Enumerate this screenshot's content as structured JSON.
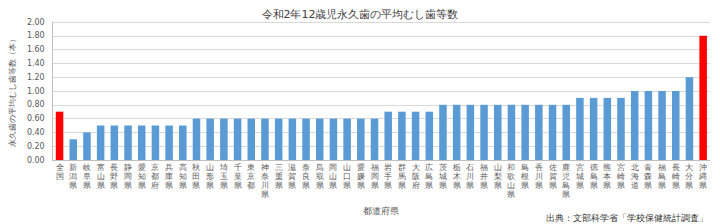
{
  "chart_data": {
    "type": "bar",
    "title": "令和2年12歳児永久歯の平均むし歯等数",
    "xlabel": "都道府県",
    "ylabel": "永久歯の平均むし歯等数（本）",
    "annotations": [
      "出典：文部科学省「学校保健統計調査」"
    ],
    "categories": [
      "全国",
      "新潟県",
      "岐阜県",
      "富山県",
      "長野県",
      "静岡県",
      "愛知県",
      "京都府",
      "兵庫県",
      "高知県",
      "秋田県",
      "山形県",
      "埼玉県",
      "千葉県",
      "東京都",
      "神奈川県",
      "三重県",
      "滋賀県",
      "奈良県",
      "鳥取県",
      "岡山県",
      "山口県",
      "愛媛県",
      "福岡県",
      "岩手県",
      "群馬県",
      "大阪府",
      "広島県",
      "茨城県",
      "栃木県",
      "石川県",
      "福井県",
      "山梨県",
      "和歌山県",
      "島根県",
      "香川県",
      "佐賀県",
      "鹿児島県",
      "宮城県",
      "徳島県",
      "熊本県",
      "宮崎県",
      "北海道",
      "青森県",
      "福島県",
      "長崎県",
      "大分県",
      "沖縄県"
    ],
    "values": [
      0.7,
      0.3,
      0.4,
      0.5,
      0.5,
      0.5,
      0.5,
      0.5,
      0.5,
      0.5,
      0.6,
      0.6,
      0.6,
      0.6,
      0.6,
      0.6,
      0.6,
      0.6,
      0.6,
      0.6,
      0.6,
      0.6,
      0.6,
      0.6,
      0.7,
      0.7,
      0.7,
      0.7,
      0.8,
      0.8,
      0.8,
      0.8,
      0.8,
      0.8,
      0.8,
      0.8,
      0.8,
      0.8,
      0.9,
      0.9,
      0.9,
      0.9,
      1.0,
      1.0,
      1.0,
      1.0,
      1.2,
      1.8
    ],
    "colors": [
      "#ff0000",
      "#5b9bd5",
      "#5b9bd5",
      "#5b9bd5",
      "#5b9bd5",
      "#5b9bd5",
      "#5b9bd5",
      "#5b9bd5",
      "#5b9bd5",
      "#5b9bd5",
      "#5b9bd5",
      "#5b9bd5",
      "#5b9bd5",
      "#5b9bd5",
      "#5b9bd5",
      "#5b9bd5",
      "#5b9bd5",
      "#5b9bd5",
      "#5b9bd5",
      "#5b9bd5",
      "#5b9bd5",
      "#5b9bd5",
      "#5b9bd5",
      "#5b9bd5",
      "#5b9bd5",
      "#5b9bd5",
      "#5b9bd5",
      "#5b9bd5",
      "#5b9bd5",
      "#5b9bd5",
      "#5b9bd5",
      "#5b9bd5",
      "#5b9bd5",
      "#5b9bd5",
      "#5b9bd5",
      "#5b9bd5",
      "#5b9bd5",
      "#5b9bd5",
      "#5b9bd5",
      "#5b9bd5",
      "#5b9bd5",
      "#5b9bd5",
      "#5b9bd5",
      "#5b9bd5",
      "#5b9bd5",
      "#5b9bd5",
      "#5b9bd5",
      "#ff0000"
    ],
    "ylim": [
      0,
      2
    ],
    "yticks": [
      {
        "value": 0,
        "label": "0.00"
      },
      {
        "value": 0.2,
        "label": "0.20"
      },
      {
        "value": 0.4,
        "label": "0.40"
      },
      {
        "value": 0.6,
        "label": "0.60"
      },
      {
        "value": 0.8,
        "label": "0.80"
      },
      {
        "value": 1.0,
        "label": "1.00"
      },
      {
        "value": 1.2,
        "label": "1.20"
      },
      {
        "value": 1.4,
        "label": "1.40"
      },
      {
        "value": 1.6,
        "label": "1.60"
      },
      {
        "value": 1.8,
        "label": "1.80"
      },
      {
        "value": 2.0,
        "label": "2.00"
      }
    ],
    "grid": true
  }
}
